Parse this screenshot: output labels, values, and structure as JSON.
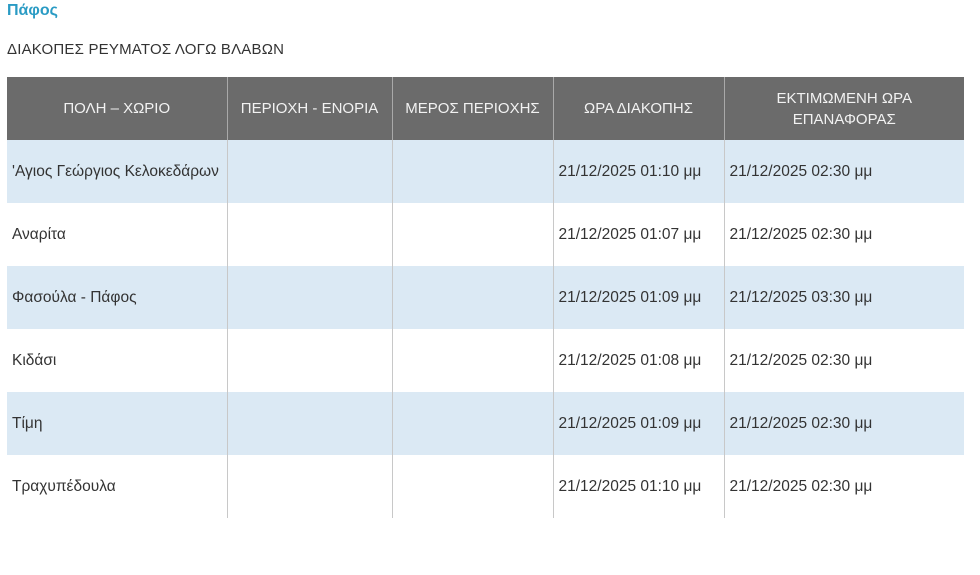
{
  "region_title": "Πάφος",
  "section_title": "ΔΙΑΚΟΠΕΣ ΡΕΥΜΑΤΟΣ ΛΟΓΩ ΒΛΑΒΩΝ",
  "colors": {
    "accent": "#2a9bc4",
    "header_bg": "#6b6b6b",
    "row_alt_bg": "#dbe9f4"
  },
  "table": {
    "headers": [
      "ΠΟΛΗ – ΧΩΡΙΟ",
      "ΠΕΡΙΟΧΗ - ΕΝΟΡΙΑ",
      "ΜΕΡΟΣ ΠΕΡΙΟΧΗΣ",
      "ΩΡΑ ΔΙΑΚΟΠΗΣ",
      "ΕΚΤΙΜΩΜΕΝΗ ΩΡΑ ΕΠΑΝΑΦΟΡΑΣ"
    ],
    "rows": [
      [
        "'Αγιος Γεώργιος Κελοκεδάρων",
        "",
        "",
        "21/12/2025 01:10 μμ",
        "21/12/2025 02:30 μμ"
      ],
      [
        "Αναρίτα",
        "",
        "",
        "21/12/2025 01:07 μμ",
        "21/12/2025 02:30 μμ"
      ],
      [
        "Φασούλα - Πάφος",
        "",
        "",
        "21/12/2025 01:09 μμ",
        "21/12/2025 03:30 μμ"
      ],
      [
        "Κιδάσι",
        "",
        "",
        "21/12/2025 01:08 μμ",
        "21/12/2025 02:30 μμ"
      ],
      [
        "Τίμη",
        "",
        "",
        "21/12/2025 01:09 μμ",
        "21/12/2025 02:30 μμ"
      ],
      [
        "Τραχυπέδουλα",
        "",
        "",
        "21/12/2025 01:10 μμ",
        "21/12/2025 02:30 μμ"
      ]
    ]
  }
}
